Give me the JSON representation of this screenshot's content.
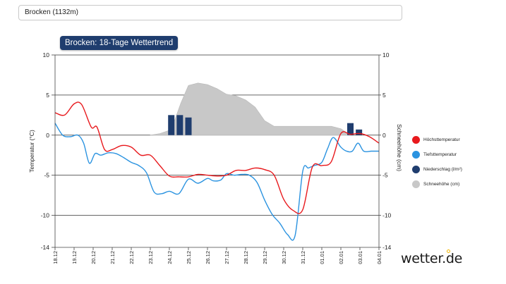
{
  "location": "Brocken (1132m)",
  "title": "Brocken: 18-Tage Wettertrend",
  "brand": "wetter.de",
  "colors": {
    "max_temp": "#e8191d",
    "min_temp": "#2b93e0",
    "precip": "#1f3d6e",
    "snow": "#c8c8c8",
    "badge": "#1f3d6e"
  },
  "legend": [
    {
      "label": "Höchsttemperatur",
      "color": "#e8191d"
    },
    {
      "label": "Tiefsttemperatur",
      "color": "#2b93e0"
    },
    {
      "label": "Niederschlag (l/m²)",
      "color": "#1f3d6e"
    },
    {
      "label": "Schneehöhe (cm)",
      "color": "#c8c8c8"
    }
  ],
  "chart_data": {
    "type": "line",
    "title": "Brocken: 18-Tage Wettertrend",
    "ylabel": "Temperatur (°C)",
    "y2label": "Schneehöhe (cm)",
    "ylim": [
      -14,
      10
    ],
    "yticks": [
      10,
      5,
      0,
      -5,
      -10,
      -14
    ],
    "y2ticks": [
      "10",
      "5",
      "0",
      "-5",
      "-10",
      "-14"
    ],
    "categories": [
      "18.12",
      "19.12",
      "20.12",
      "21.12",
      "22.12",
      "23.12",
      "24.12",
      "25.12",
      "26.12",
      "27.12",
      "28.12",
      "29.12",
      "30.12",
      "31.12",
      "01.01",
      "02.01",
      "03.01",
      "04.01"
    ],
    "series": [
      {
        "name": "Höchsttemperatur",
        "x": [
          0,
          0.5,
          1,
          1.4,
          1.9,
          2.2,
          2.6,
          3,
          3.5,
          4,
          4.5,
          5,
          5.5,
          6,
          6.5,
          7,
          7.5,
          8,
          8.5,
          9,
          9.5,
          10,
          10.5,
          11,
          11.5,
          12,
          12.5,
          13,
          13.5,
          14,
          14.5,
          15,
          15.5,
          16,
          16.5,
          17
        ],
        "values": [
          2.8,
          2.5,
          3.9,
          3.8,
          1.0,
          1.0,
          -1.8,
          -1.8,
          -1.3,
          -1.5,
          -2.5,
          -2.5,
          -3.8,
          -5.1,
          -5.2,
          -5.2,
          -4.9,
          -5.0,
          -5.1,
          -5.0,
          -4.4,
          -4.4,
          -4.1,
          -4.3,
          -5.0,
          -8.0,
          -9.4,
          -9.3,
          -4.0,
          -3.8,
          -3.3,
          0.2,
          0.1,
          0.2,
          -0.2,
          -1.0
        ]
      },
      {
        "name": "Tiefsttemperatur",
        "x": [
          0,
          0.4,
          0.8,
          1.2,
          1.5,
          1.8,
          2.1,
          2.4,
          2.8,
          3.2,
          3.6,
          4,
          4.4,
          4.8,
          5.2,
          5.6,
          6,
          6.5,
          7,
          7.5,
          8,
          8.3,
          8.7,
          9,
          9.4,
          9.8,
          10.2,
          10.6,
          11,
          11.4,
          11.8,
          12.2,
          12.6,
          13,
          13.3,
          13.6,
          14,
          14.3,
          14.6,
          15,
          15.3,
          15.6,
          15.9,
          16.2,
          16.6,
          17
        ],
        "values": [
          1.5,
          0,
          -0.2,
          0,
          -1.0,
          -3.5,
          -2.3,
          -2.5,
          -2.2,
          -2.3,
          -2.8,
          -3.4,
          -3.8,
          -4.7,
          -7.1,
          -7.3,
          -7.0,
          -7.3,
          -5.5,
          -6.0,
          -5.4,
          -5.7,
          -5.6,
          -4.8,
          -5.0,
          -4.9,
          -5.0,
          -5.9,
          -8.1,
          -9.9,
          -11.0,
          -12.4,
          -12.5,
          -4.5,
          -4.1,
          -3.8,
          -3.4,
          -1.7,
          -0.3,
          -1.5,
          -2.0,
          -2.0,
          -1.0,
          -2.0,
          -2.0,
          -2.0
        ]
      },
      {
        "name": "Schneehöhe (cm)",
        "x": [
          5,
          5.5,
          6,
          6.3,
          6.6,
          7,
          7.5,
          8,
          8.5,
          9,
          9.5,
          10,
          10.5,
          11,
          11.5,
          12,
          12.5,
          13,
          13.5,
          14,
          14.5,
          15,
          15.5
        ],
        "values": [
          0,
          0.2,
          0.6,
          2.0,
          4.0,
          6.2,
          6.5,
          6.3,
          5.8,
          5.1,
          4.9,
          4.4,
          3.5,
          1.8,
          1.1,
          1.1,
          1.1,
          1.1,
          1.1,
          1.1,
          1.1,
          0.8,
          0
        ]
      },
      {
        "name": "Niederschlag (l/m²)",
        "bars": [
          {
            "x": 6.1,
            "value": 2.5
          },
          {
            "x": 6.55,
            "value": 2.5
          },
          {
            "x": 7.0,
            "value": 2.2
          },
          {
            "x": 15.5,
            "value": 1.5
          },
          {
            "x": 15.95,
            "value": 0.7
          }
        ]
      }
    ]
  }
}
